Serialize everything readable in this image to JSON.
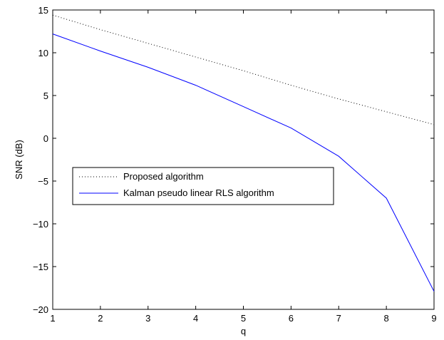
{
  "chart_data": {
    "type": "line",
    "title": "",
    "xlabel": "q",
    "ylabel": "SNR (dB)",
    "xlim": [
      1,
      9
    ],
    "ylim": [
      -20,
      15
    ],
    "xticks": [
      "1",
      "2",
      "3",
      "4",
      "5",
      "6",
      "7",
      "8",
      "9"
    ],
    "yticks": [
      "−20",
      "−15",
      "−10",
      "−5",
      "0",
      "5",
      "10",
      "15"
    ],
    "grid": false,
    "legend_position": "middle-left",
    "x": [
      1,
      2,
      3,
      4,
      5,
      6,
      7,
      8,
      9
    ],
    "series": [
      {
        "name": "Proposed algorithm",
        "style": "dotted",
        "color": "#000000",
        "values": [
          14.4,
          12.7,
          11.1,
          9.5,
          7.9,
          6.2,
          4.6,
          3.1,
          1.6
        ]
      },
      {
        "name": "Kalman pseudo linear RLS algorithm",
        "style": "solid",
        "color": "#0000ff",
        "values": [
          12.2,
          10.2,
          8.3,
          6.2,
          3.7,
          1.2,
          -2.1,
          -7.0,
          -17.9
        ]
      }
    ]
  }
}
